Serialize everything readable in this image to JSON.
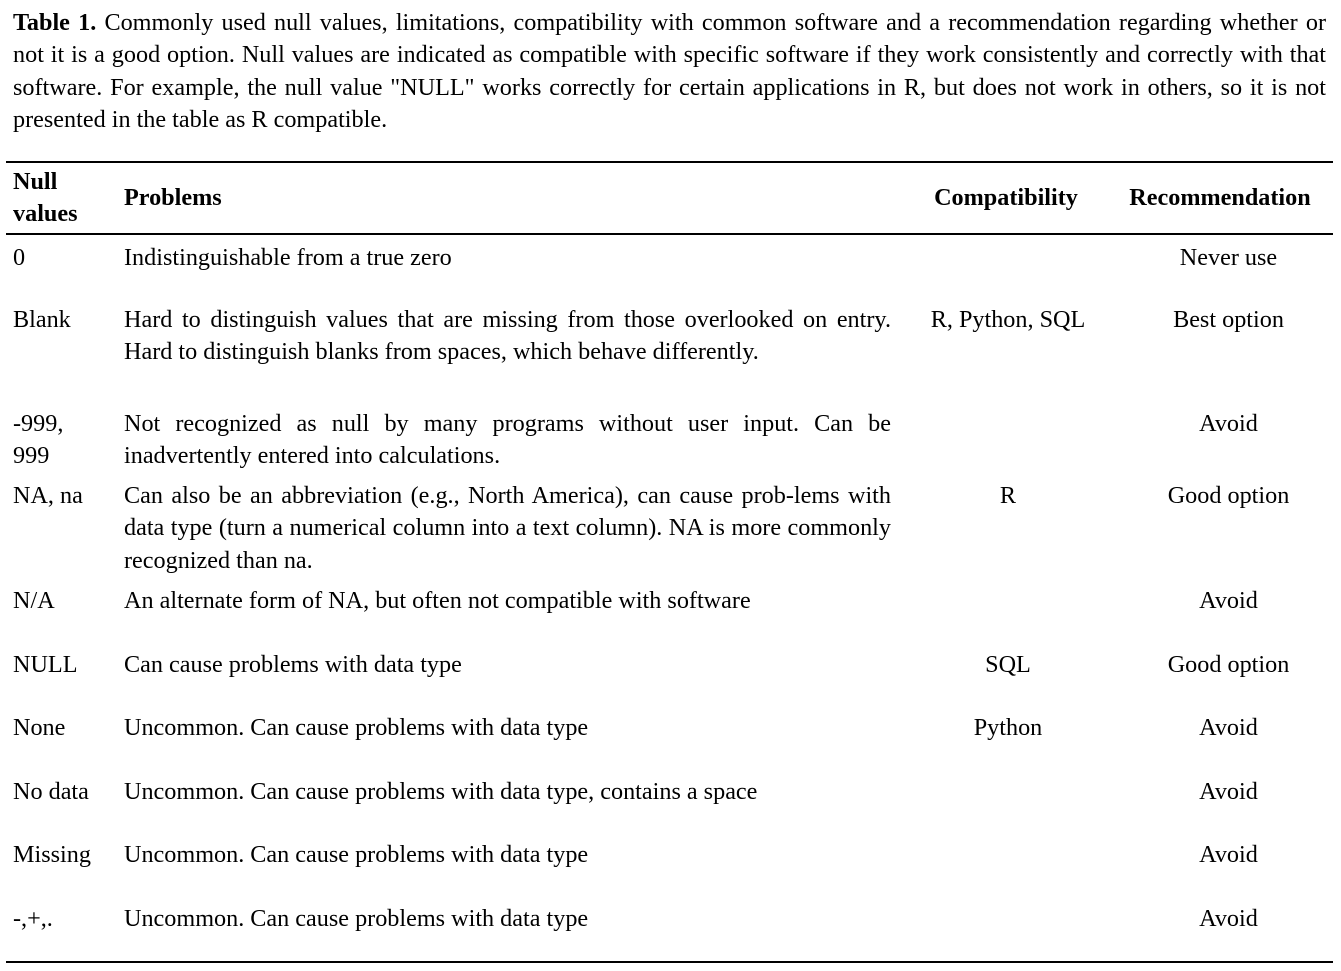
{
  "caption": {
    "label": "Table 1.",
    "text": "Commonly used null values, limitations, compatibility with common software and a recommendation regarding whether or not it is a good option. Null values are indicated as compatible with specific software if they work consistently and correctly with that software. For example, the null value \"NULL\" works correctly for certain applications in R, but does not work in others, so it is not presented in the table as R compatible."
  },
  "table": {
    "headers": {
      "null_values": "Null values",
      "problems": "Problems",
      "compatibility": "Compatibility",
      "recommendation": "Recommendation"
    },
    "rows": [
      {
        "null_value": "0",
        "problems": "Indistinguishable from a true zero",
        "compatibility": "",
        "recommendation": "Never use"
      },
      {
        "null_value": "Blank",
        "problems": "Hard to distinguish values that are missing from those overlooked on entry. Hard to distinguish blanks from spaces, which behave differently.",
        "compatibility": "R, Python, SQL",
        "recommendation": "Best option"
      },
      {
        "null_value": "-999, 999",
        "problems": "Not recognized as null by many programs without user input. Can be inadvertently entered into calculations.",
        "compatibility": "",
        "recommendation": "Avoid"
      },
      {
        "null_value": "NA, na",
        "problems": "Can also be an abbreviation (e.g., North America), can cause prob-lems with data type (turn a numerical column into a text column). NA is more commonly recognized than na.",
        "compatibility": "R",
        "recommendation": "Good option"
      },
      {
        "null_value": "N/A",
        "problems": "An alternate form of NA, but often not compatible with software",
        "compatibility": "",
        "recommendation": "Avoid"
      },
      {
        "null_value": "NULL",
        "problems": "Can cause problems with data type",
        "compatibility": "SQL",
        "recommendation": "Good option"
      },
      {
        "null_value": "None",
        "problems": "Uncommon. Can cause problems with data type",
        "compatibility": "Python",
        "recommendation": "Avoid"
      },
      {
        "null_value": "No data",
        "problems": "Uncommon. Can cause problems with data type, contains a space",
        "compatibility": "",
        "recommendation": "Avoid"
      },
      {
        "null_value": "Missing",
        "problems": "Uncommon. Can cause problems with data type",
        "compatibility": "",
        "recommendation": "Avoid"
      },
      {
        "null_value": "-,+,.",
        "problems": "Uncommon. Can cause problems with data type",
        "compatibility": "",
        "recommendation": "Avoid"
      }
    ]
  }
}
